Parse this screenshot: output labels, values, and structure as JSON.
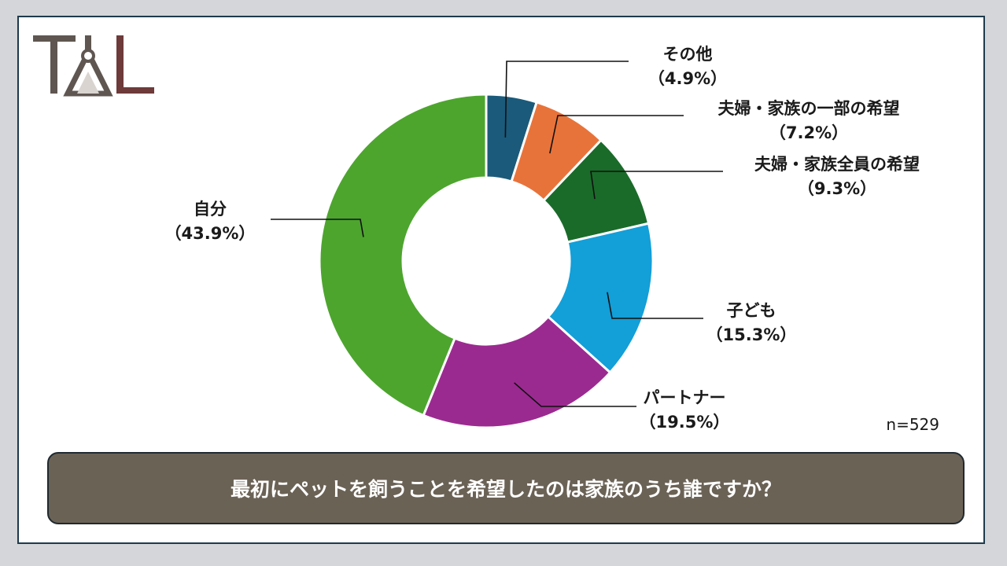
{
  "logo": {
    "text": "TAL"
  },
  "colors": {
    "frame_border": "#1f3b4d",
    "question_bg": "#6b6256",
    "logo_dark": "#5f5651",
    "logo_accent": "#6e3a3a"
  },
  "chart_data": {
    "type": "pie",
    "donut": true,
    "start": "top",
    "direction": "clockwise",
    "slices": [
      {
        "name": "その他",
        "value": 4.9,
        "percent_label": "（4.9%）",
        "color": "#1b5a7a"
      },
      {
        "name": "夫婦・家族の一部の希望",
        "value": 7.2,
        "percent_label": "（7.2%）",
        "color": "#e8733a"
      },
      {
        "name": "夫婦・家族全員の希望",
        "value": 9.3,
        "percent_label": "（9.3%）",
        "color": "#1a6b2a"
      },
      {
        "name": "子ども",
        "value": 15.3,
        "percent_label": "（15.3%）",
        "color": "#139fd8"
      },
      {
        "name": "パートナー",
        "value": 19.5,
        "percent_label": "（19.5%）",
        "color": "#9b2a90"
      },
      {
        "name": "自分",
        "value": 43.9,
        "percent_label": "（43.9%）",
        "color": "#4da52e"
      }
    ],
    "sample_size": "n=529",
    "question": "最初にペットを飼うことを希望したのは家族のうち誰ですか？"
  }
}
